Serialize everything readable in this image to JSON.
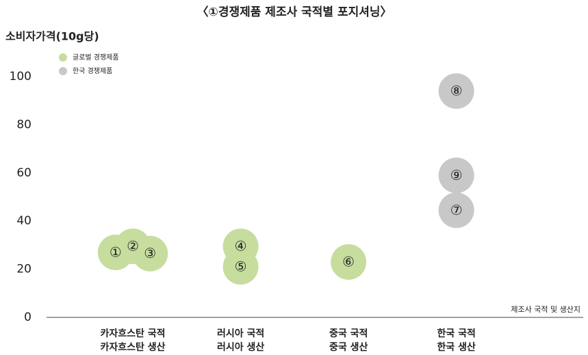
{
  "chart_data": {
    "type": "scatter",
    "title": "〈①경쟁제품 제조사 국적별 포지셔닝〉",
    "y_label": "소비자가격(10g당)",
    "x_label": "제조사 국적 및 생산지",
    "categories": [
      [
        "카자흐스탄 국적",
        "카자흐스탄 생산"
      ],
      [
        "러시아 국적",
        "러시아 생산"
      ],
      [
        "중국 국적",
        "중국 생산"
      ],
      [
        "한국 국적",
        "한국 생산"
      ]
    ],
    "xlim": [
      -0.8,
      4.1
    ],
    "ylim": [
      0,
      100
    ],
    "yticks": [
      0,
      20,
      40,
      60,
      80,
      100
    ],
    "legend": "upper-left",
    "series": [
      {
        "name": "글로벌 경쟁제품",
        "color": "#c6dd9e",
        "x": [
          -0.16,
          0,
          0.16,
          1,
          1,
          2
        ],
        "values": [
          27,
          29.5,
          26.5,
          29.5,
          21,
          23
        ],
        "labels": [
          "①",
          "②",
          "③",
          "④",
          "⑤",
          "⑥"
        ]
      },
      {
        "name": "한국 경쟁제품",
        "color": "#c8c8c8",
        "x": [
          3,
          3,
          3
        ],
        "values": [
          44.5,
          94,
          59
        ],
        "labels": [
          "⑦",
          "⑧",
          "⑨"
        ]
      }
    ]
  }
}
